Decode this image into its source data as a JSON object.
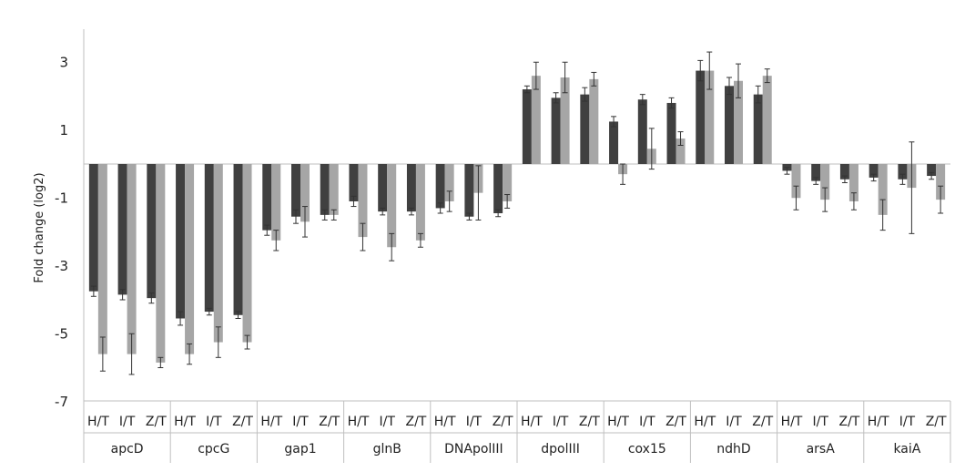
{
  "chart_data": {
    "type": "bar",
    "title": "",
    "ylabel": "Fold change (log2)",
    "xlabel": "",
    "ylim": [
      -7,
      4
    ],
    "yticks": [
      3,
      1,
      -1,
      -3,
      -5,
      -7
    ],
    "grid": false,
    "legend": "none",
    "colors": {
      "dark": "#404040",
      "light": "#a6a6a6",
      "axis": "#bfbfbf",
      "errorbar": "#333333"
    },
    "categories": [
      "apcD",
      "cpcG",
      "gap1",
      "glnB",
      "DNApolIII",
      "dpolIII",
      "cox15",
      "ndhD",
      "arsA",
      "kaiA"
    ],
    "subcategories": [
      "H/T",
      "I/T",
      "Z/T"
    ],
    "series": [
      {
        "color_role": "dark",
        "values": [
          [
            -3.75,
            -3.85,
            -3.95
          ],
          [
            -4.55,
            -4.35,
            -4.45
          ],
          [
            -1.95,
            -1.55,
            -1.5
          ],
          [
            -1.1,
            -1.4,
            -1.4
          ],
          [
            -1.3,
            -1.55,
            -1.45
          ],
          [
            2.2,
            1.95,
            2.05
          ],
          [
            1.25,
            1.9,
            1.8
          ],
          [
            2.75,
            2.3,
            2.05
          ],
          [
            -0.2,
            -0.5,
            -0.45
          ],
          [
            -0.4,
            -0.45,
            -0.35
          ]
        ],
        "errors": [
          [
            0.15,
            0.15,
            0.15
          ],
          [
            0.2,
            0.1,
            0.1
          ],
          [
            0.15,
            0.2,
            0.15
          ],
          [
            0.15,
            0.1,
            0.1
          ],
          [
            0.15,
            0.1,
            0.1
          ],
          [
            0.1,
            0.15,
            0.2
          ],
          [
            0.15,
            0.15,
            0.15
          ],
          [
            0.3,
            0.25,
            0.25
          ],
          [
            0.1,
            0.1,
            0.1
          ],
          [
            0.1,
            0.15,
            0.1
          ]
        ]
      },
      {
        "color_role": "light",
        "values": [
          [
            -5.6,
            -5.6,
            -5.85
          ],
          [
            -5.6,
            -5.25,
            -5.25
          ],
          [
            -2.25,
            -1.7,
            -1.5
          ],
          [
            -2.15,
            -2.45,
            -2.25
          ],
          [
            -1.1,
            -0.85,
            -1.1
          ],
          [
            2.6,
            2.55,
            2.5
          ],
          [
            -0.3,
            0.45,
            0.75
          ],
          [
            2.75,
            2.45,
            2.6
          ],
          [
            -1.0,
            -1.05,
            -1.1
          ],
          [
            -1.5,
            -0.7,
            -1.05
          ]
        ],
        "errors": [
          [
            0.5,
            0.6,
            0.15
          ],
          [
            0.3,
            0.45,
            0.2
          ],
          [
            0.3,
            0.45,
            0.15
          ],
          [
            0.4,
            0.4,
            0.2
          ],
          [
            0.3,
            0.8,
            0.2
          ],
          [
            0.4,
            0.45,
            0.2
          ],
          [
            0.3,
            0.6,
            0.2
          ],
          [
            0.55,
            0.5,
            0.2
          ],
          [
            0.35,
            0.35,
            0.25
          ],
          [
            0.45,
            1.35,
            0.4
          ]
        ]
      }
    ]
  }
}
